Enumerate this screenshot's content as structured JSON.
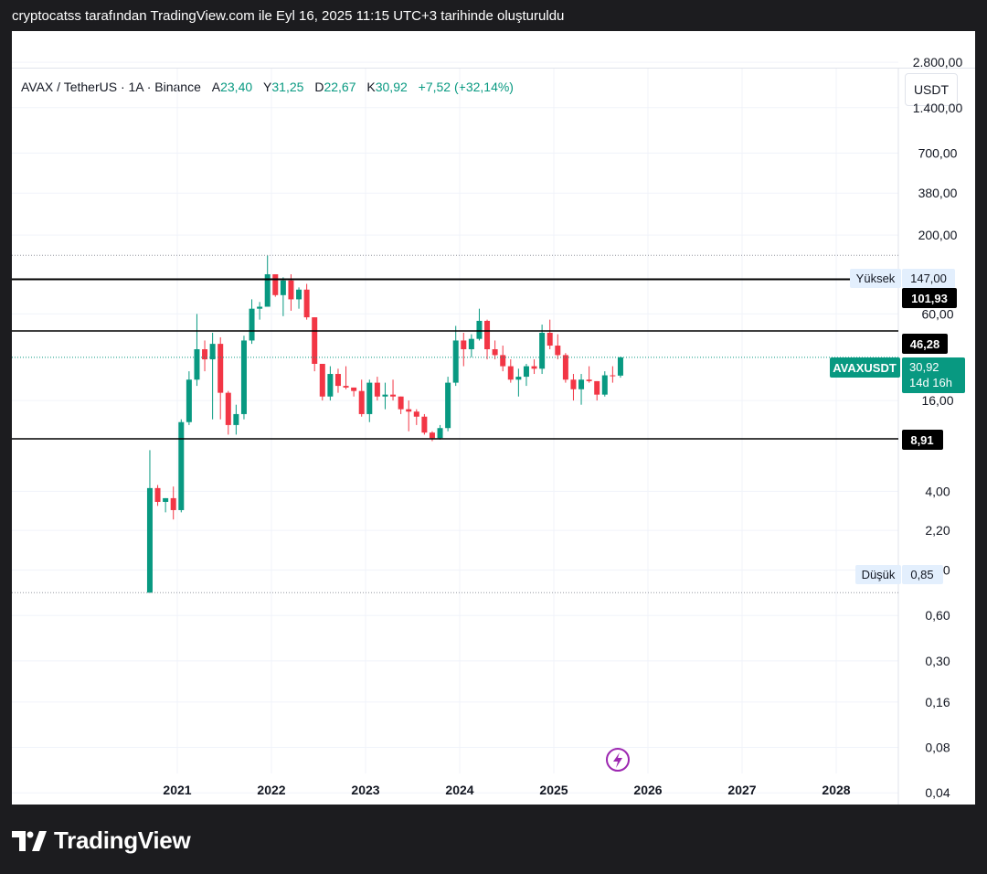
{
  "caption": "cryptocatss tarafından TradingView.com ile Eyl 16, 2025 11:15 UTC+3 tarihinde oluşturuldu",
  "legend": {
    "symbol": "AVAX / TetherUS · 1A · Binance",
    "open_label": "A",
    "open": "23,40",
    "high_label": "Y",
    "high": "31,25",
    "low_label": "D",
    "low": "22,67",
    "close_label": "K",
    "close": "30,92",
    "change": "+7,52 (+32,14%)"
  },
  "currency_button": "USDT",
  "watermark": "TradingView",
  "colors": {
    "up": "#089981",
    "down": "#f23645",
    "accent": "#089981",
    "background": "#1c1c1f"
  },
  "axis": {
    "y_ticks": [
      "2.800,00",
      "1.400,00",
      "700,00",
      "380,00",
      "200,00",
      "60,00",
      "16,00",
      "4,00",
      "2,20",
      "1,20",
      "0,60",
      "0,30",
      "0,16",
      "0,08",
      "0,04"
    ],
    "x_ticks": [
      "2021",
      "2022",
      "2023",
      "2024",
      "2025",
      "2026",
      "2027",
      "2028"
    ]
  },
  "price_labels": {
    "high_tag": "Yüksek",
    "high_value": "147,00",
    "low_tag": "Düşük",
    "low_value": "0,85",
    "line1": "101,93",
    "line2": "46,28",
    "line3": "8,91",
    "symbol_tag": "AVAXUSDT",
    "last_price": "30,92",
    "countdown": "14d 16h"
  },
  "chart_data": {
    "type": "candlestick",
    "scale": "log",
    "interval": "1 month",
    "ylim": [
      0.03,
      3300
    ],
    "horizontal_levels": [
      101.93,
      46.28,
      8.91
    ],
    "dotted_levels": [
      147.0,
      30.92,
      0.85
    ],
    "candles": [
      {
        "date": "2020-09",
        "o": 0.85,
        "h": 7.5,
        "l": 0.85,
        "c": 4.2
      },
      {
        "date": "2020-10",
        "o": 4.2,
        "h": 4.4,
        "l": 3.2,
        "c": 3.4
      },
      {
        "date": "2020-11",
        "o": 3.4,
        "h": 3.6,
        "l": 2.9,
        "c": 3.6
      },
      {
        "date": "2020-12",
        "o": 3.6,
        "h": 4.3,
        "l": 2.6,
        "c": 3.0
      },
      {
        "date": "2021-01",
        "o": 3.0,
        "h": 12.0,
        "l": 2.9,
        "c": 11.5
      },
      {
        "date": "2021-02",
        "o": 11.5,
        "h": 25.0,
        "l": 11.0,
        "c": 22.0
      },
      {
        "date": "2021-03",
        "o": 22.0,
        "h": 60.0,
        "l": 20.0,
        "c": 35.0
      },
      {
        "date": "2021-04",
        "o": 35.0,
        "h": 40.0,
        "l": 25.0,
        "c": 30.0
      },
      {
        "date": "2021-05",
        "o": 30.0,
        "h": 45.0,
        "l": 12.0,
        "c": 38.0
      },
      {
        "date": "2021-06",
        "o": 38.0,
        "h": 42.0,
        "l": 12.0,
        "c": 18.0
      },
      {
        "date": "2021-07",
        "o": 18.0,
        "h": 18.5,
        "l": 9.5,
        "c": 11.0
      },
      {
        "date": "2021-08",
        "o": 11.0,
        "h": 15.0,
        "l": 9.5,
        "c": 13.0
      },
      {
        "date": "2021-09",
        "o": 13.0,
        "h": 43.0,
        "l": 12.0,
        "c": 40.0
      },
      {
        "date": "2021-10",
        "o": 40.0,
        "h": 75.0,
        "l": 38.0,
        "c": 65.0
      },
      {
        "date": "2021-11",
        "o": 65.0,
        "h": 72.0,
        "l": 55.0,
        "c": 67.0
      },
      {
        "date": "2021-12",
        "o": 67.0,
        "h": 147.0,
        "l": 67.0,
        "c": 110.0
      },
      {
        "date": "2022-01",
        "o": 110.0,
        "h": 110.0,
        "l": 78.0,
        "c": 80.0
      },
      {
        "date": "2022-02",
        "o": 80.0,
        "h": 105.0,
        "l": 58.0,
        "c": 100.0
      },
      {
        "date": "2022-03",
        "o": 100.0,
        "h": 110.0,
        "l": 63.0,
        "c": 75.0
      },
      {
        "date": "2022-04",
        "o": 75.0,
        "h": 90.0,
        "l": 65.0,
        "c": 87.0
      },
      {
        "date": "2022-05",
        "o": 87.0,
        "h": 95.0,
        "l": 55.0,
        "c": 57.0
      },
      {
        "date": "2022-06",
        "o": 57.0,
        "h": 57.0,
        "l": 25.0,
        "c": 28.0
      },
      {
        "date": "2022-07",
        "o": 28.0,
        "h": 28.0,
        "l": 16.0,
        "c": 17.0
      },
      {
        "date": "2022-08",
        "o": 17.0,
        "h": 27.0,
        "l": 16.0,
        "c": 24.0
      },
      {
        "date": "2022-09",
        "o": 24.0,
        "h": 26.0,
        "l": 18.0,
        "c": 20.0
      },
      {
        "date": "2022-10",
        "o": 20.0,
        "h": 27.0,
        "l": 19.0,
        "c": 19.5
      },
      {
        "date": "2022-11",
        "o": 19.5,
        "h": 19.5,
        "l": 17.0,
        "c": 18.5
      },
      {
        "date": "2022-12",
        "o": 18.5,
        "h": 22.0,
        "l": 12.5,
        "c": 13.0
      },
      {
        "date": "2023-01",
        "o": 13.0,
        "h": 22.0,
        "l": 11.5,
        "c": 21.0
      },
      {
        "date": "2023-02",
        "o": 21.0,
        "h": 23.0,
        "l": 16.0,
        "c": 17.0
      },
      {
        "date": "2023-03",
        "o": 17.0,
        "h": 21.0,
        "l": 14.0,
        "c": 17.5
      },
      {
        "date": "2023-04",
        "o": 17.5,
        "h": 22.0,
        "l": 16.0,
        "c": 17.0
      },
      {
        "date": "2023-05",
        "o": 17.0,
        "h": 17.0,
        "l": 13.0,
        "c": 14.0
      },
      {
        "date": "2023-06",
        "o": 14.0,
        "h": 16.0,
        "l": 10.0,
        "c": 13.5
      },
      {
        "date": "2023-07",
        "o": 13.5,
        "h": 14.0,
        "l": 11.0,
        "c": 12.5
      },
      {
        "date": "2023-08",
        "o": 12.5,
        "h": 13.0,
        "l": 9.5,
        "c": 9.8
      },
      {
        "date": "2023-09",
        "o": 9.8,
        "h": 10.0,
        "l": 8.6,
        "c": 9.0
      },
      {
        "date": "2023-10",
        "o": 9.0,
        "h": 11.0,
        "l": 8.8,
        "c": 10.5
      },
      {
        "date": "2023-11",
        "o": 10.5,
        "h": 23.0,
        "l": 10.0,
        "c": 21.0
      },
      {
        "date": "2023-12",
        "o": 21.0,
        "h": 50.0,
        "l": 20.0,
        "c": 40.0
      },
      {
        "date": "2024-01",
        "o": 40.0,
        "h": 45.0,
        "l": 27.0,
        "c": 35.0
      },
      {
        "date": "2024-02",
        "o": 35.0,
        "h": 44.0,
        "l": 31.0,
        "c": 41.0
      },
      {
        "date": "2024-03",
        "o": 41.0,
        "h": 65.0,
        "l": 40.0,
        "c": 54.0
      },
      {
        "date": "2024-04",
        "o": 54.0,
        "h": 55.0,
        "l": 30.0,
        "c": 35.0
      },
      {
        "date": "2024-05",
        "o": 35.0,
        "h": 40.0,
        "l": 30.0,
        "c": 32.0
      },
      {
        "date": "2024-06",
        "o": 32.0,
        "h": 37.0,
        "l": 25.0,
        "c": 27.0
      },
      {
        "date": "2024-07",
        "o": 27.0,
        "h": 30.0,
        "l": 21.0,
        "c": 22.0
      },
      {
        "date": "2024-08",
        "o": 22.0,
        "h": 26.0,
        "l": 17.0,
        "c": 23.0
      },
      {
        "date": "2024-09",
        "o": 23.0,
        "h": 28.0,
        "l": 20.0,
        "c": 27.0
      },
      {
        "date": "2024-10",
        "o": 27.0,
        "h": 30.0,
        "l": 24.0,
        "c": 26.0
      },
      {
        "date": "2024-11",
        "o": 26.0,
        "h": 51.0,
        "l": 24.0,
        "c": 45.0
      },
      {
        "date": "2024-12",
        "o": 45.0,
        "h": 55.0,
        "l": 35.0,
        "c": 37.0
      },
      {
        "date": "2025-01",
        "o": 37.0,
        "h": 44.0,
        "l": 30.0,
        "c": 32.0
      },
      {
        "date": "2025-02",
        "o": 32.0,
        "h": 33.0,
        "l": 21.0,
        "c": 22.0
      },
      {
        "date": "2025-03",
        "o": 22.0,
        "h": 24.0,
        "l": 16.0,
        "c": 19.0
      },
      {
        "date": "2025-04",
        "o": 19.0,
        "h": 24.0,
        "l": 15.0,
        "c": 22.0
      },
      {
        "date": "2025-05",
        "o": 22.0,
        "h": 27.0,
        "l": 21.0,
        "c": 21.5
      },
      {
        "date": "2025-06",
        "o": 21.5,
        "h": 21.5,
        "l": 16.0,
        "c": 17.5
      },
      {
        "date": "2025-07",
        "o": 17.5,
        "h": 25.0,
        "l": 17.0,
        "c": 23.5
      },
      {
        "date": "2025-08",
        "o": 23.5,
        "h": 27.0,
        "l": 21.0,
        "c": 23.4
      },
      {
        "date": "2025-09",
        "o": 23.4,
        "h": 31.25,
        "l": 22.67,
        "c": 30.92
      }
    ]
  }
}
